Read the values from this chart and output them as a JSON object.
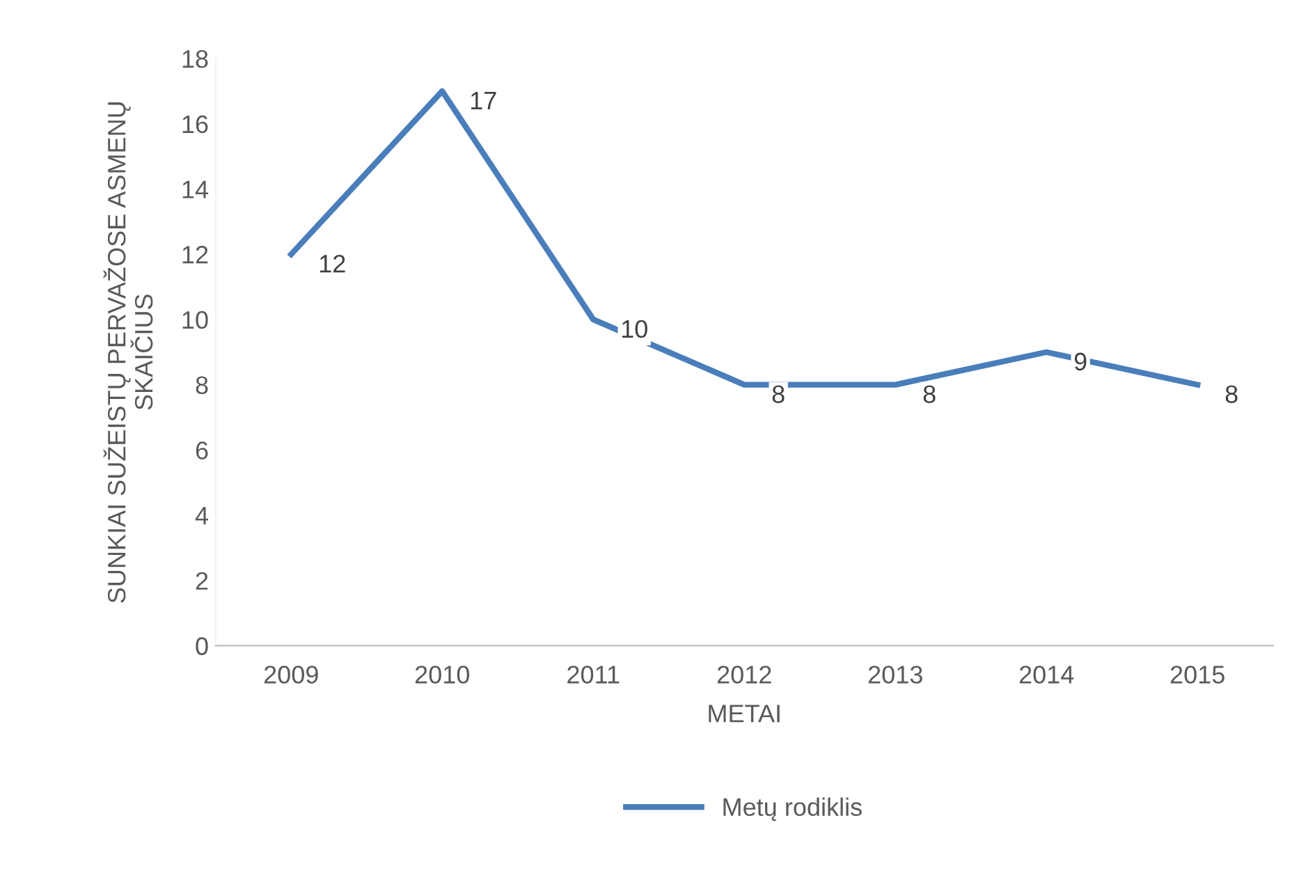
{
  "chart_data": {
    "type": "line",
    "xlabel": "METAI",
    "ylabel": "SUNKIAI SUŽEISTŲ PERVAŽOSE ASMENŲ\nSKAIČIUS",
    "categories": [
      "2009",
      "2010",
      "2011",
      "2012",
      "2013",
      "2014",
      "2015"
    ],
    "series": [
      {
        "name": "Metų rodiklis",
        "color": "#4a7ebb",
        "values": [
          12,
          17,
          10,
          8,
          8,
          9,
          8
        ]
      }
    ],
    "ylim": [
      0,
      18
    ],
    "yticks": [
      0,
      2,
      4,
      6,
      8,
      10,
      12,
      14,
      16,
      18
    ],
    "data_labels": true,
    "grid": false,
    "legend": "bottom",
    "marker": "none",
    "line_style": "solid"
  }
}
